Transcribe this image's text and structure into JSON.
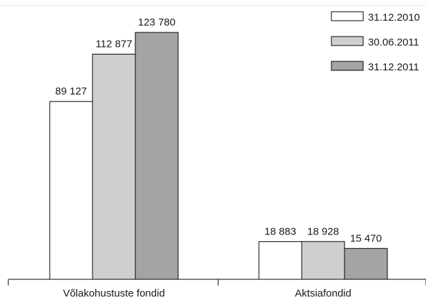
{
  "chart_data": {
    "type": "bar",
    "categories": [
      "Võlakohustuste fondid",
      "Aktsiafondid"
    ],
    "series": [
      {
        "name": "31.12.2010",
        "values": [
          89127,
          18883
        ],
        "labels": [
          "89 127",
          "18 883"
        ],
        "color": "#ffffff"
      },
      {
        "name": "30.06.2011",
        "values": [
          112877,
          18928
        ],
        "labels": [
          "112 877",
          "18 928"
        ],
        "color": "#cfcfcf"
      },
      {
        "name": "31.12.2011",
        "values": [
          123780,
          15470
        ],
        "labels": [
          "123 780",
          "15 470"
        ],
        "color": "#a4a4a6"
      }
    ],
    "title": "",
    "xlabel": "",
    "ylabel": "",
    "ylim": [
      0,
      135000
    ],
    "grid": false,
    "legend_position": "top-right",
    "colors": {
      "stroke": "#000000",
      "top_rule": "#e6e6e6"
    }
  }
}
